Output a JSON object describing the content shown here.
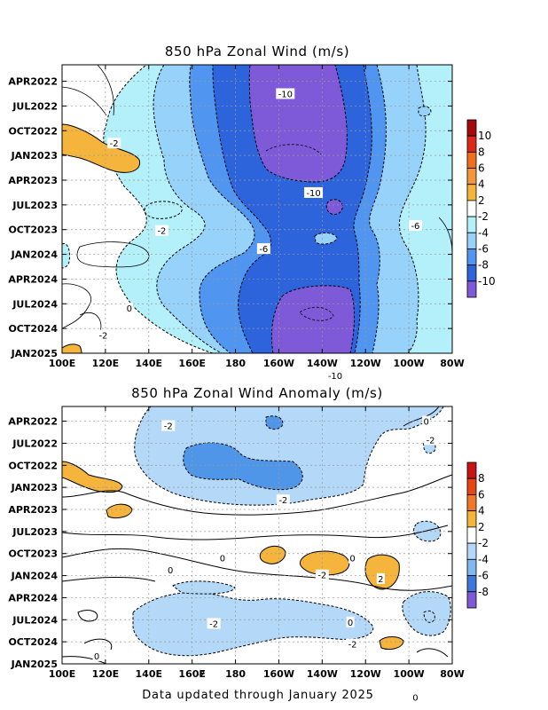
{
  "footer": "Data updated through January 2025",
  "chart_data": [
    {
      "type": "heatmap",
      "title": "850 hPa Zonal Wind (m/s)",
      "x_tick_labels": [
        "100E",
        "120E",
        "140E",
        "160E",
        "180",
        "160W",
        "140W",
        "120W",
        "100W",
        "80W"
      ],
      "y_tick_labels": [
        "APR2022",
        "JUL2022",
        "OCT2022",
        "JAN2023",
        "APR2023",
        "JUL2023",
        "OCT2023",
        "JAN2024",
        "APR2024",
        "JUL2024",
        "OCT2024",
        "JAN2025"
      ],
      "colorbar_labels": [
        "10",
        "8",
        "6",
        "4",
        "2",
        "-2",
        "-4",
        "-6",
        "-8",
        "-10"
      ],
      "contour_labels": [
        {
          "text": "-10",
          "lon": -157,
          "month": 4.5
        },
        {
          "text": "-2",
          "lon": 124,
          "month": 10.5
        },
        {
          "text": "-10",
          "lon": -144,
          "month": 16.5
        },
        {
          "text": "-6",
          "lon": -97,
          "month": 20.5
        },
        {
          "text": "-2",
          "lon": 146,
          "month": 21.1
        },
        {
          "text": "-6",
          "lon": -167,
          "month": 23.3
        },
        {
          "text": "0",
          "lon": 131,
          "month": 30.5
        },
        {
          "text": "-2",
          "lon": 119,
          "month": 33.8
        },
        {
          "text": "-10",
          "lon": -134,
          "month": 38.7
        }
      ]
    },
    {
      "type": "heatmap",
      "title": "850 hPa Zonal Wind Anomaly (m/s)",
      "x_tick_labels": [
        "100E",
        "120E",
        "140E",
        "160E",
        "180",
        "160W",
        "140W",
        "120W",
        "100W",
        "80W"
      ],
      "y_tick_labels": [
        "APR2022",
        "JUL2022",
        "OCT2022",
        "JAN2023",
        "APR2023",
        "JUL2023",
        "OCT2023",
        "JAN2024",
        "APR2024",
        "JUL2024",
        "OCT2024",
        "JAN2025"
      ],
      "colorbar_labels": [
        "8",
        "6",
        "4",
        "2",
        "-2",
        "-4",
        "-6",
        "-8"
      ],
      "contour_labels": [
        {
          "text": "0",
          "lon": -92,
          "month": 3
        },
        {
          "text": "-2",
          "lon": 149,
          "month": 3.6
        },
        {
          "text": "-2",
          "lon": -90,
          "month": 5.5
        },
        {
          "text": "-2",
          "lon": -158,
          "month": 13.7
        },
        {
          "text": "0",
          "lon": 174,
          "month": 21.6
        },
        {
          "text": "0",
          "lon": -126,
          "month": 21.6
        },
        {
          "text": "0",
          "lon": 150,
          "month": 23.2
        },
        {
          "text": "-2",
          "lon": -140,
          "month": 23.9
        },
        {
          "text": "2",
          "lon": -113,
          "month": 24.4
        },
        {
          "text": "-2",
          "lon": 170,
          "month": 30.5
        },
        {
          "text": "0",
          "lon": -127,
          "month": 30.3
        },
        {
          "text": "-2",
          "lon": -126,
          "month": 33.3
        },
        {
          "text": "0",
          "lon": 116,
          "month": 34.9
        },
        {
          "text": "-2",
          "lon": 164,
          "month": 37.3
        },
        {
          "text": "0",
          "lon": -97,
          "month": 40.5
        }
      ]
    }
  ]
}
